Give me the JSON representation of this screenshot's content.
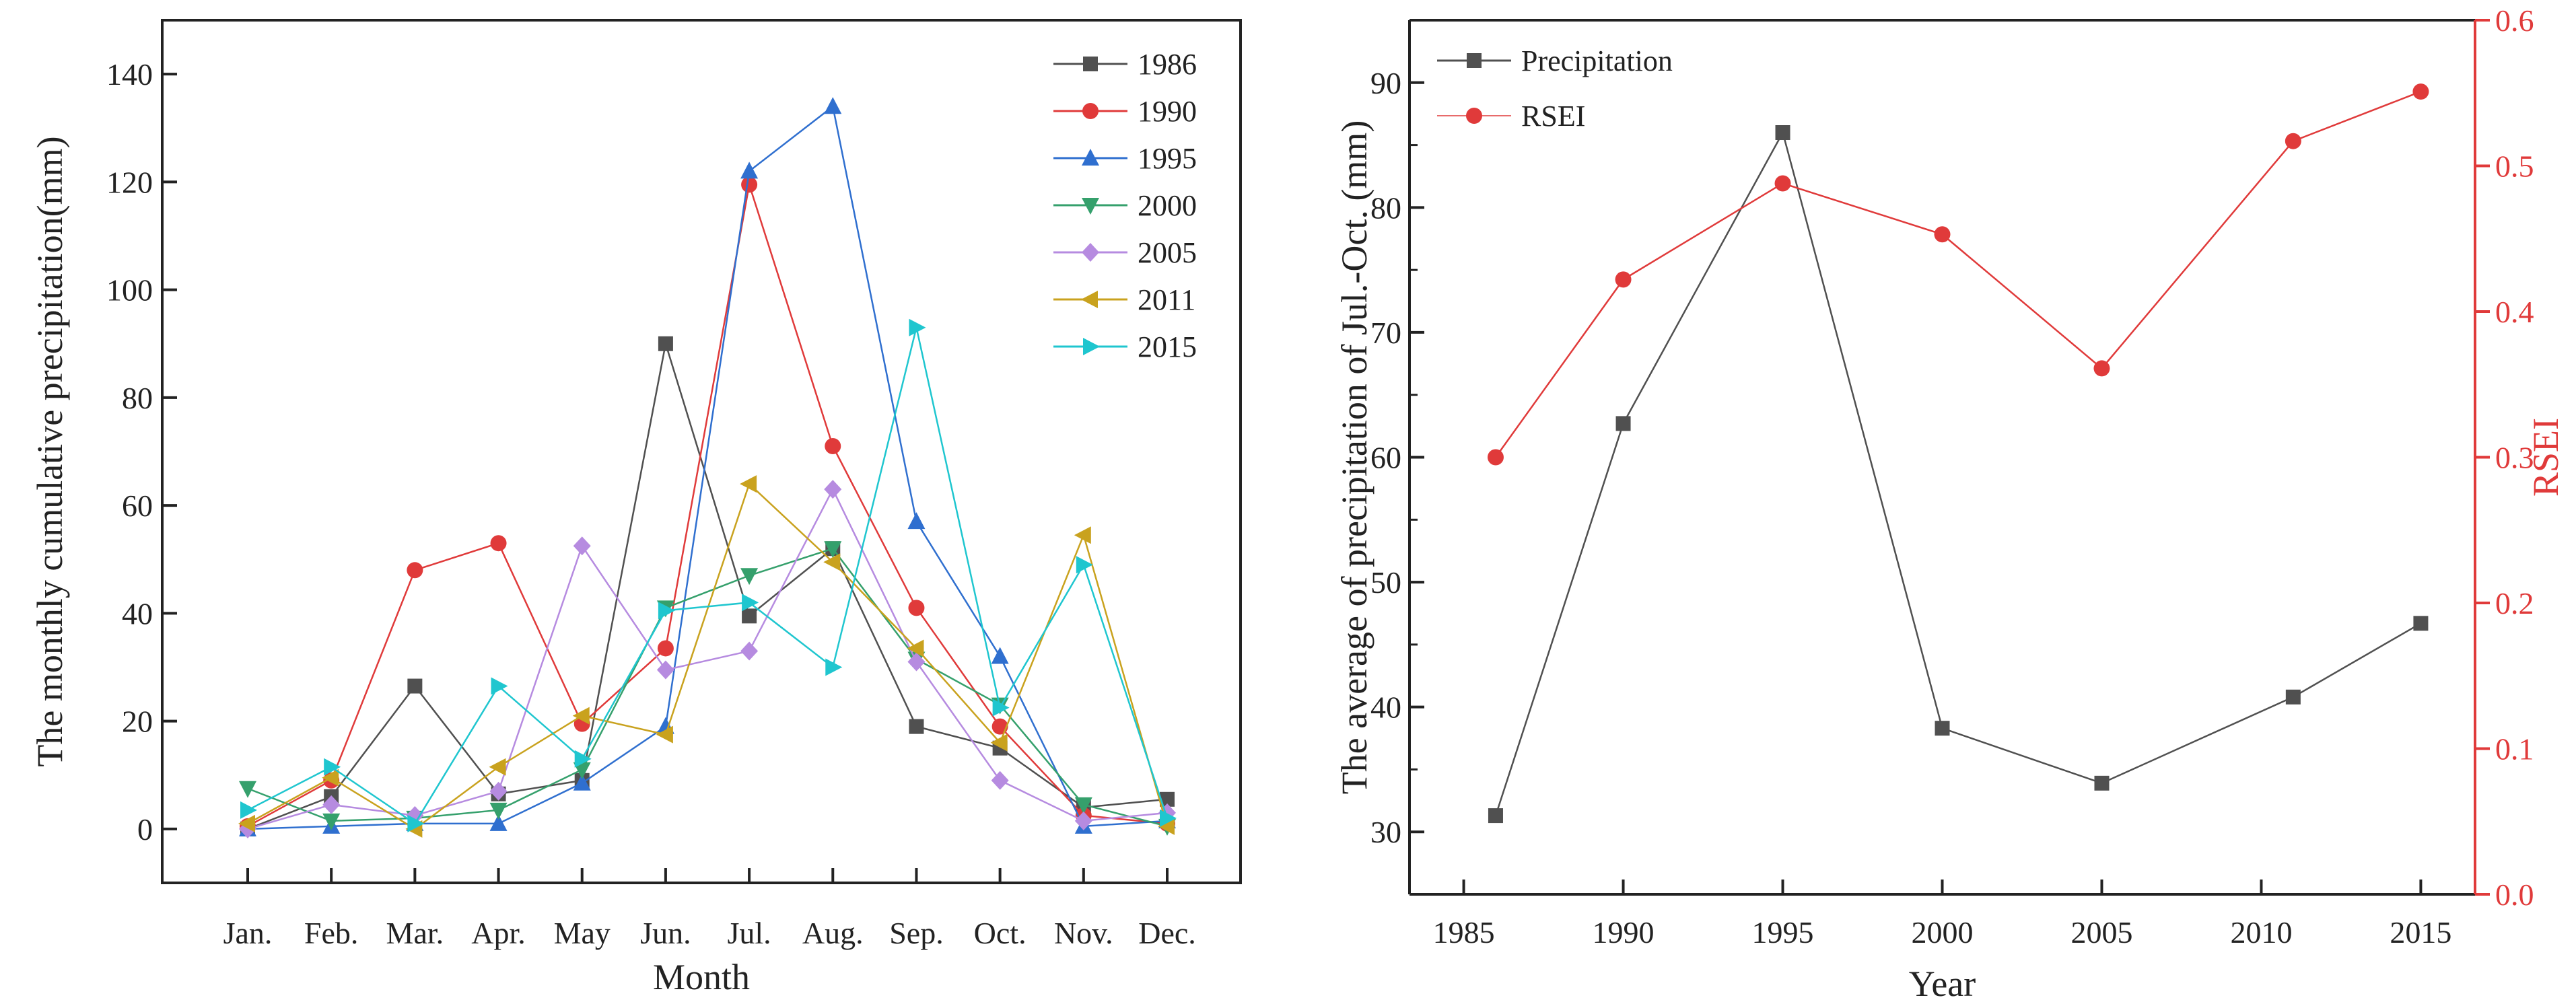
{
  "chart_data": [
    {
      "type": "line",
      "xlabel": "Month",
      "ylabel": "The monthly cumulative precipitation(mm)",
      "categories": [
        "Jan.",
        "Feb.",
        "Mar.",
        "Apr.",
        "May",
        "Jun.",
        "Jul.",
        "Aug.",
        "Sep.",
        "Oct.",
        "Nov.",
        "Dec."
      ],
      "ylim": [
        -10,
        150
      ],
      "yticks": [
        0,
        20,
        40,
        60,
        80,
        100,
        120,
        140
      ],
      "legend_position": "top-right",
      "grid": false,
      "series": [
        {
          "name": "1986",
          "color": "#505050",
          "marker": "square",
          "values": [
            0,
            6,
            26.5,
            6.5,
            9,
            90,
            39.5,
            52,
            19,
            15,
            4,
            5.5
          ]
        },
        {
          "name": "1990",
          "color": "#e03a3a",
          "marker": "circle",
          "values": [
            0.5,
            9,
            48,
            53,
            19.5,
            33.5,
            119.5,
            71,
            41,
            19,
            2.5,
            1
          ]
        },
        {
          "name": "1995",
          "color": "#2f6fcf",
          "marker": "triangle-up",
          "values": [
            0,
            0.5,
            1,
            1,
            8.5,
            19,
            122,
            134,
            57,
            32,
            0.5,
            1.5
          ]
        },
        {
          "name": "2000",
          "color": "#35a06c",
          "marker": "triangle-down",
          "values": [
            7.5,
            1.5,
            2,
            3.5,
            11,
            41,
            47,
            52,
            31.5,
            23,
            4.5,
            0.5
          ]
        },
        {
          "name": "2005",
          "color": "#b68be0",
          "marker": "diamond",
          "values": [
            0,
            4.5,
            2.5,
            7,
            52.5,
            29.5,
            33,
            63,
            31,
            9,
            1.5,
            3
          ]
        },
        {
          "name": "2011",
          "color": "#c9a21e",
          "marker": "triangle-left",
          "values": [
            1,
            9.5,
            0,
            11.5,
            21,
            17.5,
            64,
            49.5,
            33.5,
            16,
            54.5,
            0.5
          ]
        },
        {
          "name": "2015",
          "color": "#1fc6cf",
          "marker": "triangle-right",
          "values": [
            3.5,
            11.5,
            1,
            26.5,
            13,
            40.5,
            42,
            30,
            93,
            22.5,
            49,
            2
          ]
        }
      ]
    },
    {
      "type": "line",
      "xlabel": "Year",
      "ylabel": "The average of precipitation of Jul.-Oct. (mm)",
      "y2label": "RSEI",
      "x": [
        1986,
        1990,
        1995,
        2000,
        2005,
        2011,
        2015
      ],
      "xlim": [
        1983.3,
        2016.7
      ],
      "xticks": [
        1985,
        1990,
        1995,
        2000,
        2005,
        2010,
        2015
      ],
      "ylim": [
        25,
        95
      ],
      "yticks": [
        30,
        40,
        50,
        60,
        70,
        80,
        90
      ],
      "y2lim": [
        0,
        0.6
      ],
      "y2ticks": [
        "0.0",
        "0.1",
        "0.2",
        "0.3",
        "0.4",
        "0.5",
        "0.6"
      ],
      "y2color": "#e03a3a",
      "legend_position": "top-left",
      "grid": false,
      "series": [
        {
          "name": "Precipitation",
          "axis": "left",
          "color": "#505050",
          "marker": "square",
          "values": [
            31.3,
            62.7,
            86,
            38.3,
            33.9,
            40.8,
            46.7
          ]
        },
        {
          "name": "RSEI",
          "axis": "right",
          "color": "#e03a3a",
          "marker": "circle",
          "values": [
            0.3,
            0.422,
            0.488,
            0.453,
            0.361,
            0.517,
            0.551
          ]
        }
      ]
    }
  ]
}
